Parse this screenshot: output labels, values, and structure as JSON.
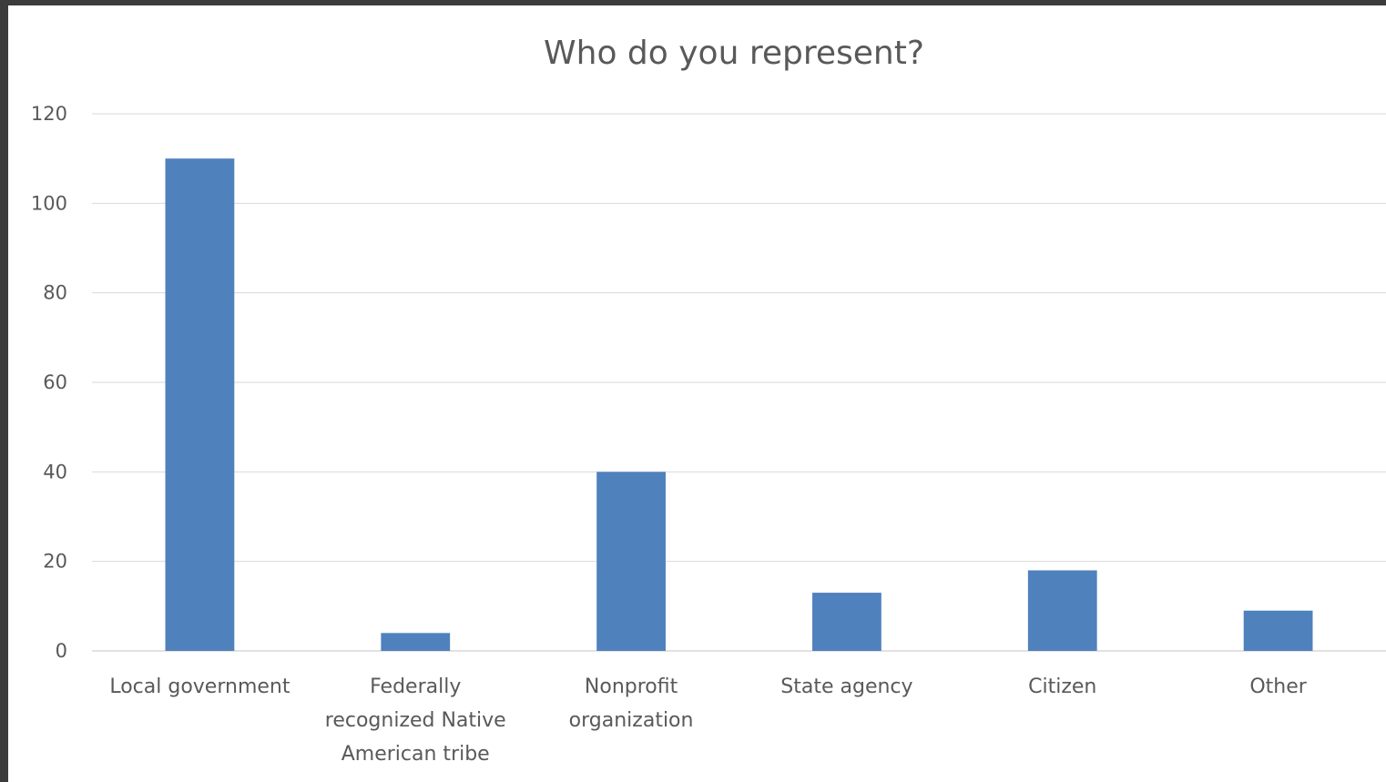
{
  "chart_data": {
    "type": "bar",
    "title": "Who do you represent?",
    "categories": [
      "Local government",
      "Federally recognized Native American tribe",
      "Nonprofit organization",
      "State agency",
      "Citizen",
      "Other"
    ],
    "category_label_lines": [
      [
        "Local government"
      ],
      [
        "Federally",
        "recognized Native",
        "American tribe"
      ],
      [
        "Nonprofit",
        "organization"
      ],
      [
        "State agency"
      ],
      [
        "Citizen"
      ],
      [
        "Other"
      ]
    ],
    "values": [
      110,
      4,
      40,
      13,
      18,
      9
    ],
    "ylim": [
      0,
      120
    ],
    "yticks": [
      0,
      20,
      40,
      60,
      80,
      100,
      120
    ],
    "xlabel": "",
    "ylabel": "",
    "grid": true,
    "legend": "none",
    "bar_color": "#4f81bd",
    "grid_color": "#d9d9d9"
  }
}
